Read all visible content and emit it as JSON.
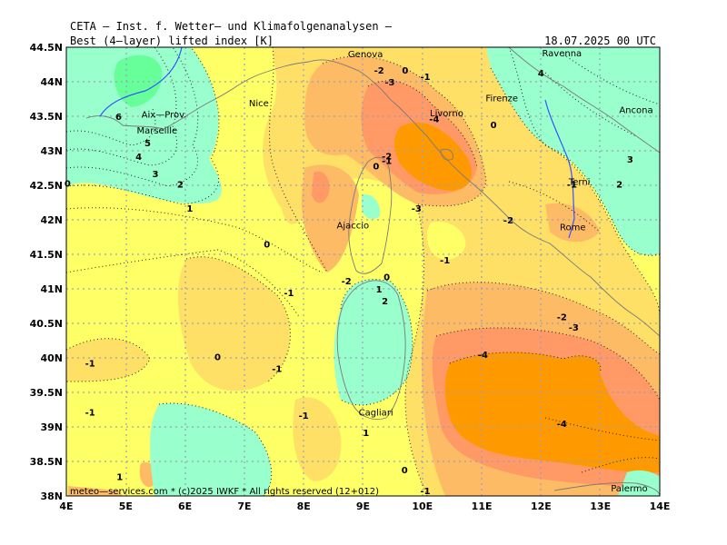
{
  "header": {
    "institution": "CETA — Inst. f. Wetter— und Klimafolgenanalysen —",
    "product": "Best_(4—layer)_lifted_index_[K]",
    "valid_time": "18.07.2025 00 UTC"
  },
  "footer": {
    "copyright": "meteo—services.com * (c)2025 IWKF * All rights reserved (12+012)"
  },
  "axes": {
    "lon_labels": [
      "4E",
      "5E",
      "6E",
      "7E",
      "8E",
      "9E",
      "10E",
      "11E",
      "12E",
      "13E",
      "14E"
    ],
    "lat_labels": [
      "44.5N",
      "44N",
      "43.5N",
      "43N",
      "42.5N",
      "42N",
      "41.5N",
      "41N",
      "40.5N",
      "40N",
      "39.5N",
      "39N",
      "38.5N",
      "38N"
    ]
  },
  "map_data": {
    "lon_range": [
      4,
      14
    ],
    "lat_range": [
      38,
      44.5
    ],
    "palette": {
      "band_-5_-4": "#ff9900",
      "band_-4_-3": "#ff9966",
      "band_-3_-2": "#fdbb66",
      "band_-2_-1": "#fee066",
      "band_-1_0": "#ffff66",
      "band_0_plus": "#99ffcc",
      "grid": "#9aa0b8",
      "coast": "#7a7a7a",
      "river": "#3355ff"
    },
    "cities": [
      {
        "name": "Genova",
        "lon": 8.93,
        "lat": 44.41
      },
      {
        "name": "Ravenna",
        "lon": 12.2,
        "lat": 44.42
      },
      {
        "name": "Nice",
        "lon": 7.26,
        "lat": 43.7
      },
      {
        "name": "Aix—Prov.",
        "lon": 5.45,
        "lat": 43.53
      },
      {
        "name": "Marseille",
        "lon": 5.37,
        "lat": 43.3
      },
      {
        "name": "Livorno",
        "lon": 10.31,
        "lat": 43.55
      },
      {
        "name": "Firenze",
        "lon": 11.25,
        "lat": 43.77
      },
      {
        "name": "Ancona",
        "lon": 13.5,
        "lat": 43.6
      },
      {
        "name": "Terni",
        "lon": 12.65,
        "lat": 42.56
      },
      {
        "name": "Ajaccio",
        "lon": 8.74,
        "lat": 41.93
      },
      {
        "name": "Rome",
        "lon": 12.5,
        "lat": 41.9
      },
      {
        "name": "Cagliari",
        "lon": 9.11,
        "lat": 39.22
      },
      {
        "name": "Palermo",
        "lon": 13.36,
        "lat": 38.12
      }
    ],
    "contour_labels": [
      {
        "v": "-2",
        "lon": 9.27,
        "lat": 44.17
      },
      {
        "v": "0",
        "lon": 9.71,
        "lat": 44.17
      },
      {
        "v": "-1",
        "lon": 10.05,
        "lat": 44.08
      },
      {
        "v": "-3",
        "lon": 9.45,
        "lat": 44.0
      },
      {
        "v": "4",
        "lon": 12.0,
        "lat": 44.13
      },
      {
        "v": "6",
        "lon": 4.88,
        "lat": 43.5
      },
      {
        "v": "-4",
        "lon": 10.2,
        "lat": 43.47
      },
      {
        "v": "0",
        "lon": 11.2,
        "lat": 43.38
      },
      {
        "v": "5",
        "lon": 5.37,
        "lat": 43.12
      },
      {
        "v": "-2",
        "lon": 9.4,
        "lat": 42.93
      },
      {
        "v": "4",
        "lon": 5.22,
        "lat": 42.92
      },
      {
        "v": "-1",
        "lon": 9.4,
        "lat": 42.86
      },
      {
        "v": "3",
        "lon": 13.5,
        "lat": 42.88
      },
      {
        "v": "0",
        "lon": 9.22,
        "lat": 42.78
      },
      {
        "v": "3",
        "lon": 5.5,
        "lat": 42.67
      },
      {
        "v": "0",
        "lon": 4.02,
        "lat": 42.53
      },
      {
        "v": "2",
        "lon": 5.92,
        "lat": 42.52
      },
      {
        "v": "-1",
        "lon": 12.52,
        "lat": 42.52
      },
      {
        "v": "2",
        "lon": 13.32,
        "lat": 42.52
      },
      {
        "v": "1",
        "lon": 6.08,
        "lat": 42.17
      },
      {
        "v": "-3",
        "lon": 9.9,
        "lat": 42.17
      },
      {
        "v": "-2",
        "lon": 11.45,
        "lat": 42.0
      },
      {
        "v": "0",
        "lon": 7.38,
        "lat": 41.65
      },
      {
        "v": "-1",
        "lon": 10.38,
        "lat": 41.42
      },
      {
        "v": "0",
        "lon": 9.4,
        "lat": 41.18
      },
      {
        "v": "-2",
        "lon": 8.72,
        "lat": 41.12
      },
      {
        "v": "1",
        "lon": 9.27,
        "lat": 41.0
      },
      {
        "v": "-1",
        "lon": 7.75,
        "lat": 40.95
      },
      {
        "v": "2",
        "lon": 9.37,
        "lat": 40.83
      },
      {
        "v": "-2",
        "lon": 12.35,
        "lat": 40.6
      },
      {
        "v": "-3",
        "lon": 12.55,
        "lat": 40.45
      },
      {
        "v": "-4",
        "lon": 11.02,
        "lat": 40.05
      },
      {
        "v": "-1",
        "lon": 4.4,
        "lat": 39.93
      },
      {
        "v": "0",
        "lon": 6.55,
        "lat": 40.02
      },
      {
        "v": "-1",
        "lon": 7.55,
        "lat": 39.85
      },
      {
        "v": "-1",
        "lon": 4.4,
        "lat": 39.22
      },
      {
        "v": "-1",
        "lon": 8.0,
        "lat": 39.17
      },
      {
        "v": "-4",
        "lon": 12.35,
        "lat": 39.05
      },
      {
        "v": "1",
        "lon": 9.05,
        "lat": 38.92
      },
      {
        "v": "0",
        "lon": 9.7,
        "lat": 38.38
      },
      {
        "v": "1",
        "lon": 4.9,
        "lat": 38.28
      },
      {
        "v": "-1",
        "lon": 10.05,
        "lat": 38.08
      }
    ]
  }
}
